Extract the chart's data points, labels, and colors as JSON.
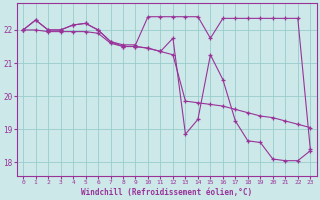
{
  "line1_y": [
    22.0,
    22.3,
    22.0,
    22.0,
    22.15,
    22.2,
    22.0,
    21.65,
    21.55,
    21.55,
    22.4,
    22.4,
    22.4,
    22.4,
    22.4,
    21.75,
    22.35,
    22.35,
    22.35,
    22.35,
    22.35,
    22.35,
    22.35,
    18.4
  ],
  "line2_y": [
    22.0,
    22.0,
    21.95,
    21.95,
    21.95,
    21.95,
    21.9,
    21.6,
    21.5,
    21.5,
    21.45,
    21.35,
    21.25,
    19.85,
    19.8,
    19.75,
    19.7,
    19.6,
    19.5,
    19.4,
    19.35,
    19.25,
    19.15,
    19.05
  ],
  "line3_y": [
    22.0,
    22.3,
    22.0,
    22.0,
    22.15,
    22.2,
    22.0,
    21.65,
    21.5,
    21.5,
    21.45,
    21.35,
    21.75,
    18.85,
    19.3,
    21.25,
    20.5,
    19.25,
    18.65,
    18.6,
    18.1,
    18.05,
    18.05,
    18.35
  ],
  "line_color": "#993399",
  "bg_color": "#cce8e8",
  "grid_color": "#99cccc",
  "xlabel": "Windchill (Refroidissement éolien,°C)",
  "yticks": [
    18,
    19,
    20,
    21,
    22
  ],
  "xticks": [
    0,
    1,
    2,
    3,
    4,
    5,
    6,
    7,
    8,
    9,
    10,
    11,
    12,
    13,
    14,
    15,
    16,
    17,
    18,
    19,
    20,
    21,
    22,
    23
  ],
  "xlim": [
    -0.5,
    23.5
  ],
  "ylim": [
    17.6,
    22.8
  ]
}
